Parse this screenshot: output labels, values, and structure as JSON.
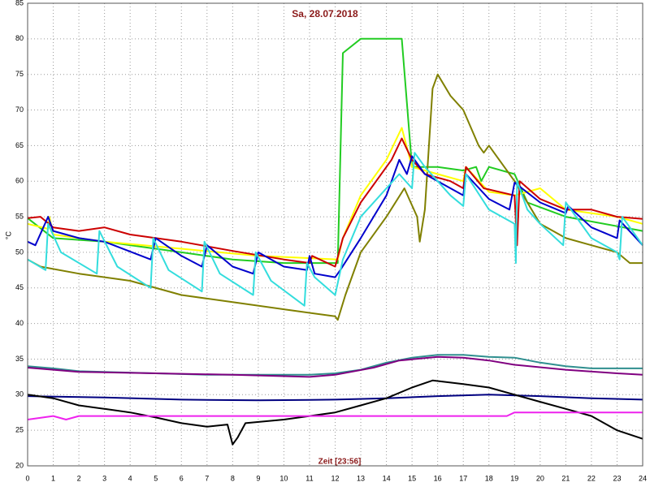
{
  "chart_data": {
    "type": "line",
    "title": "Sa, 28.07.2018",
    "x_label": "Zeit [23:56]",
    "y_label": "°C",
    "xlim": [
      0,
      24
    ],
    "xticks": [
      0,
      1,
      2,
      3,
      4,
      5,
      6,
      7,
      8,
      9,
      10,
      11,
      12,
      13,
      14,
      15,
      16,
      17,
      18,
      19,
      20,
      21,
      22,
      23,
      24
    ],
    "ylim": [
      20,
      85
    ],
    "yticks": [
      20,
      25,
      30,
      35,
      40,
      45,
      50,
      55,
      60,
      65,
      70,
      75,
      80,
      85
    ],
    "grid": true,
    "series": [
      {
        "color": "#22cc22",
        "x": [
          0,
          1,
          3,
          6,
          8,
          10,
          12.1,
          12.3,
          13,
          14.5,
          14.6,
          15,
          16,
          17,
          17.5,
          17.7,
          18,
          19,
          19.5,
          21,
          24
        ],
        "values": [
          54.8,
          52,
          51.5,
          50,
          49,
          48.5,
          48.5,
          78,
          80,
          80,
          80,
          62,
          62,
          61.5,
          62,
          60,
          62,
          61,
          57,
          55,
          53
        ]
      },
      {
        "color": "#808000",
        "x": [
          0,
          0.5,
          2,
          4,
          6,
          8,
          10,
          12,
          12.1,
          12.4,
          13,
          14,
          14.7,
          15.2,
          15.3,
          15.5,
          15.8,
          16,
          16.5,
          17,
          17.6,
          17.8,
          18,
          18.6,
          19,
          19.5,
          20,
          21,
          22,
          23,
          23.5,
          24
        ],
        "values": [
          49,
          48,
          47,
          46,
          44,
          43,
          42,
          41,
          40.5,
          44,
          50,
          55,
          59,
          55,
          51.5,
          56,
          73,
          75,
          72,
          70,
          65,
          64,
          65,
          62,
          60,
          57,
          54,
          52,
          51,
          50,
          48.5,
          48.5
        ]
      },
      {
        "color": "#ffff00",
        "x": [
          0,
          0.8,
          0.85,
          1,
          3,
          6,
          9,
          12.1,
          12.3,
          13,
          14,
          14.6,
          15,
          16,
          17,
          17.1,
          18,
          19,
          20,
          21,
          23,
          24
        ],
        "values": [
          54,
          53.3,
          55,
          52.5,
          51.5,
          50.5,
          49.5,
          49,
          52,
          58,
          63,
          67.5,
          62,
          61,
          60,
          62,
          58.5,
          58,
          59,
          56,
          55,
          54
        ]
      },
      {
        "color": "#cc0000",
        "x": [
          0,
          0.5,
          1,
          2,
          3,
          4,
          6,
          8,
          10,
          11,
          11.1,
          12,
          12.3,
          13,
          14.2,
          14.6,
          15,
          15.5,
          16.5,
          17,
          17.1,
          17.8,
          19,
          19.1,
          19.2,
          20,
          21,
          22,
          23,
          24
        ],
        "values": [
          54.8,
          55,
          53.5,
          53,
          53.5,
          52.5,
          51.5,
          50.2,
          49,
          48.5,
          49.5,
          48,
          52,
          57,
          63,
          66,
          63,
          61,
          60,
          59,
          62,
          59,
          58,
          51,
          60,
          57.5,
          56,
          56,
          55,
          54.7
        ]
      },
      {
        "color": "#0000cc",
        "x": [
          0,
          0.3,
          0.8,
          1,
          2,
          3,
          4.8,
          5,
          6,
          6.8,
          7,
          8,
          8.8,
          9,
          10,
          10.9,
          11,
          11.2,
          12,
          12.2,
          13,
          14,
          14.5,
          14.8,
          15,
          15.5,
          16.5,
          17,
          17.1,
          18,
          18.8,
          19,
          20,
          21,
          21.1,
          22,
          23,
          23.1,
          24
        ],
        "values": [
          51.5,
          51,
          55,
          53,
          52,
          51.5,
          49,
          52,
          49.5,
          48,
          51,
          48,
          47,
          50,
          48,
          47.5,
          49.5,
          47,
          46.5,
          47.5,
          52,
          58,
          63,
          61,
          63.5,
          61,
          59,
          58,
          61,
          57.5,
          56,
          59.8,
          57,
          55.5,
          56.5,
          53.5,
          52,
          54.5,
          51
        ]
      },
      {
        "color": "#33dddd",
        "x": [
          0,
          0.7,
          0.8,
          1.3,
          2.7,
          2.8,
          3.5,
          4.8,
          4.9,
          5.5,
          6.8,
          6.9,
          7.5,
          8.8,
          8.9,
          9.5,
          10.8,
          10.9,
          11.2,
          12,
          12.3,
          13,
          14.5,
          15,
          15.1,
          15.5,
          16.5,
          17,
          17.1,
          18,
          19,
          19.05,
          19.1,
          19.5,
          20,
          20.9,
          21,
          22,
          23,
          23.1,
          23.2,
          24
        ],
        "values": [
          49,
          47.5,
          54,
          50,
          47,
          53,
          48,
          45,
          52,
          47.5,
          44.5,
          51.5,
          47,
          44,
          50,
          46,
          42.5,
          48.5,
          46.5,
          44,
          49,
          55,
          61,
          59,
          64,
          62,
          58,
          56.5,
          61,
          56,
          54,
          48.5,
          60,
          56,
          54,
          51,
          57,
          52,
          50,
          49,
          55,
          51
        ]
      },
      {
        "color": "#2f8f8f",
        "x": [
          0,
          1,
          2,
          5,
          7,
          11,
          12,
          13,
          14,
          15,
          16,
          17,
          18,
          19,
          20,
          21,
          22,
          24
        ],
        "values": [
          34,
          33.7,
          33.3,
          33,
          32.8,
          32.8,
          33,
          33.5,
          34.5,
          35.2,
          35.6,
          35.6,
          35.3,
          35.2,
          34.5,
          34,
          33.7,
          33.7
        ]
      },
      {
        "color": "#800080",
        "x": [
          0,
          2,
          5,
          8,
          11,
          12,
          13.5,
          14.5,
          16,
          17,
          18,
          19,
          21,
          23,
          24
        ],
        "values": [
          33.8,
          33.2,
          33,
          32.8,
          32.5,
          32.8,
          33.8,
          34.8,
          35.3,
          35.2,
          34.8,
          34.2,
          33.5,
          33,
          32.8
        ]
      },
      {
        "color": "#000080",
        "x": [
          0,
          3,
          6,
          9,
          12,
          14,
          16,
          18,
          20,
          22,
          24
        ],
        "values": [
          29.8,
          29.6,
          29.3,
          29.2,
          29.3,
          29.5,
          29.8,
          30,
          29.8,
          29.5,
          29.3
        ]
      },
      {
        "color": "#000000",
        "x": [
          0,
          1,
          2,
          3,
          4,
          5,
          6,
          7,
          7.8,
          8,
          8.2,
          8.5,
          10,
          11,
          12,
          13,
          14,
          15,
          15.8,
          17,
          18,
          19,
          20,
          21,
          22,
          23,
          24
        ],
        "values": [
          30,
          29.5,
          28.5,
          28,
          27.5,
          26.8,
          26,
          25.5,
          25.8,
          23,
          24,
          26,
          26.5,
          27,
          27.5,
          28.5,
          29.5,
          31,
          32,
          31.5,
          31,
          30,
          29,
          28,
          27,
          25,
          23.8
        ]
      },
      {
        "color": "#ee22ee",
        "x": [
          0,
          1,
          1.5,
          2,
          18.7,
          19,
          24
        ],
        "values": [
          26.5,
          27,
          26.5,
          27,
          27,
          27.5,
          27.5
        ]
      }
    ]
  }
}
